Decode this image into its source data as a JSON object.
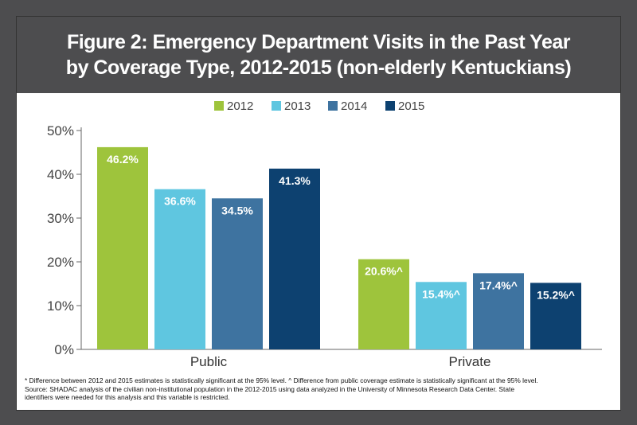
{
  "title": {
    "line1": "Figure 2: Emergency Department Visits in the Past Year",
    "line2": "by Coverage Type, 2012-2015 (non-elderly Kentuckians)"
  },
  "chart_data": {
    "type": "bar",
    "categories": [
      "Public",
      "Private"
    ],
    "series": [
      {
        "name": "2012",
        "color": "#9ec43c",
        "values": [
          46.2,
          20.6
        ],
        "labels": [
          "46.2%",
          "20.6%^"
        ]
      },
      {
        "name": "2013",
        "color": "#5fc6e0",
        "values": [
          36.6,
          15.4
        ],
        "labels": [
          "36.6%",
          "15.4%^"
        ]
      },
      {
        "name": "2014",
        "color": "#3e73a0",
        "values": [
          34.5,
          17.4
        ],
        "labels": [
          "34.5%",
          "17.4%^"
        ]
      },
      {
        "name": "2015",
        "color": "#0d4170",
        "values": [
          41.3,
          15.2
        ],
        "labels": [
          "41.3%",
          "15.2%^"
        ]
      }
    ],
    "yticks": [
      "0%",
      "10%",
      "20%",
      "30%",
      "40%",
      "50%"
    ],
    "ylim": [
      0,
      50
    ],
    "legend_position": "top-center",
    "grid": false
  },
  "footnote": {
    "line1": "* Difference between 2012 and 2015 estimates is statistically significant at the 95% level.  ^ Difference from public coverage estimate is statistically significant at the 95% level.",
    "line2": "Source: SHADAC analysis of the civilian non-institutional population in the 2012-2015 using data analyzed in the University of Minnesota Research Data Center. State",
    "line3": "identifiers were needed for this analysis and this variable is restricted."
  }
}
